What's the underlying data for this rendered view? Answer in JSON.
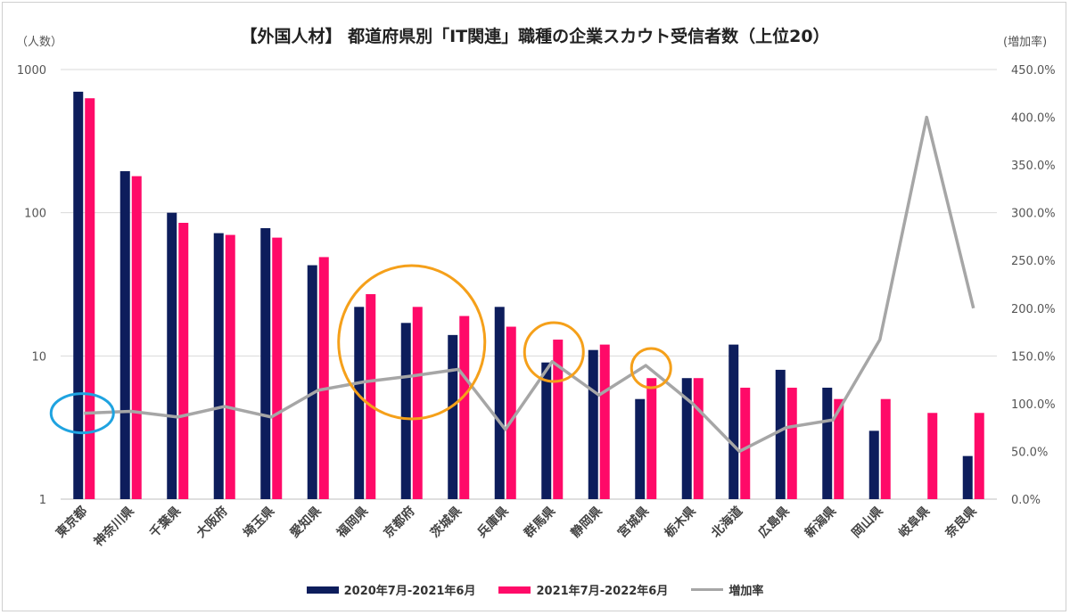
{
  "chart_data": {
    "type": "bar",
    "title": "【外国人材】 都道府県別「IT関連」職種の企業スカウト受信者数（上位20）",
    "ylabel_left": "（人数）",
    "ylabel_right": "(増加率)",
    "y_left_scale": "log",
    "ylim_left": [
      1,
      1000
    ],
    "y_left_ticks": [
      "1",
      "10",
      "100",
      "1000"
    ],
    "ylim_right": [
      0,
      450
    ],
    "y_right_ticks": [
      "0.0%",
      "50.0%",
      "100.0%",
      "150.0%",
      "200.0%",
      "250.0%",
      "300.0%",
      "350.0%",
      "400.0%",
      "450.0%"
    ],
    "categories": [
      "東京都",
      "神奈川県",
      "千葉県",
      "大阪府",
      "埼玉県",
      "愛知県",
      "福岡県",
      "京都府",
      "茨城県",
      "兵庫県",
      "群馬県",
      "静岡県",
      "宮城県",
      "栃木県",
      "北海道",
      "広島県",
      "新潟県",
      "岡山県",
      "岐阜県",
      "奈良県"
    ],
    "series": [
      {
        "name": "2020年7月-2021年6月",
        "color": "#0d1d5c",
        "axis": "left",
        "values": [
          700,
          195,
          100,
          72,
          78,
          43,
          22,
          17,
          14,
          22,
          9,
          11,
          5,
          7,
          12,
          8,
          6,
          3,
          null,
          2
        ]
      },
      {
        "name": "2021年7月-2022年6月",
        "color": "#ff0a68",
        "axis": "left",
        "values": [
          630,
          180,
          85,
          70,
          67,
          49,
          27,
          22,
          19,
          16,
          13,
          12,
          7,
          7,
          6,
          6,
          5,
          5,
          4,
          4
        ]
      },
      {
        "name": "増加率",
        "color": "#a6a6a6",
        "axis": "right",
        "type": "line",
        "values": [
          90,
          92,
          86,
          97,
          86,
          114,
          123,
          129,
          136,
          73,
          144,
          109,
          140,
          100,
          50,
          75,
          83,
          167,
          400,
          200
        ]
      }
    ],
    "annotations": [
      {
        "shape": "circle",
        "color": "#1fa3e0",
        "around": "東京都 増加率"
      },
      {
        "shape": "circle",
        "color": "#f5a01a",
        "around": "福岡県-茨城県"
      },
      {
        "shape": "circle",
        "color": "#f5a01a",
        "around": "群馬県"
      },
      {
        "shape": "circle",
        "color": "#f5a01a",
        "around": "宮城県"
      }
    ]
  }
}
